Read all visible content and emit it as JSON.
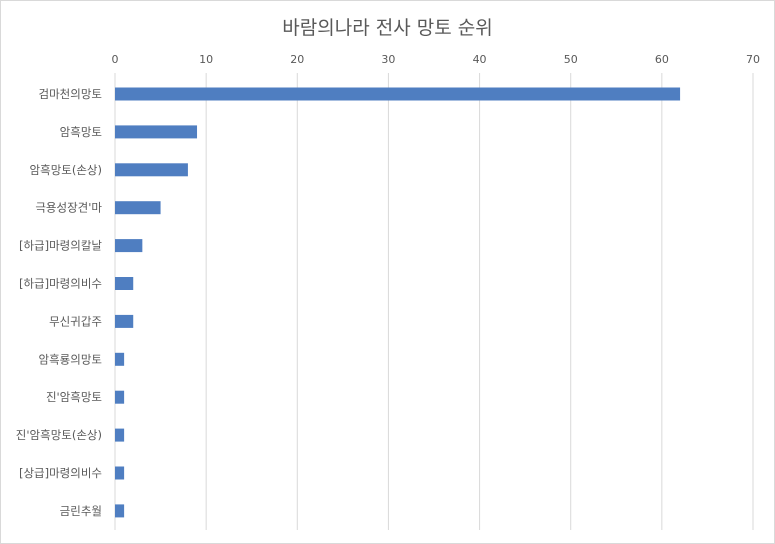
{
  "chart_data": {
    "type": "bar",
    "orientation": "horizontal",
    "title": "바람의나라 전사 망토 순위",
    "categories": [
      "검마천의망토",
      "암흑망토",
      "암흑망토(손상)",
      "극용성장견'마",
      "[하급]마령의칼날",
      "[하급]마령의비수",
      "무신귀갑주",
      "암흑룡의망토",
      "진'암흑망토",
      "진'암흑망토(손상)",
      "[상급]마령의비수",
      "금린추월"
    ],
    "values": [
      62,
      9,
      8,
      5,
      3,
      2,
      2,
      1,
      1,
      1,
      1,
      1
    ],
    "xlim": [
      0,
      70
    ],
    "xticks": [
      0,
      10,
      20,
      30,
      40,
      50,
      60,
      70
    ],
    "xaxis_position": "top",
    "grid": true,
    "legend": "none",
    "bar_color": "#4F7EC1",
    "grid_color": "#d9d9d9"
  }
}
